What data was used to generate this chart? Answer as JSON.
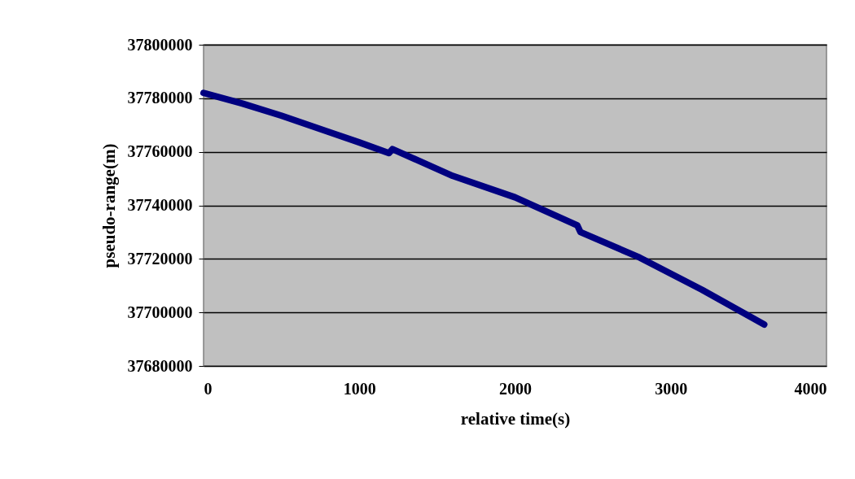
{
  "chart_data": {
    "type": "line",
    "xlabel": "relative time(s)",
    "ylabel": "pseudo-range(m)",
    "x": [
      0,
      250,
      500,
      800,
      1000,
      1190,
      1213,
      1600,
      2000,
      2400,
      2420,
      2800,
      3200,
      3600
    ],
    "series": [
      {
        "color": "#000080",
        "values": [
          37782000,
          37778000,
          37773500,
          37767500,
          37763500,
          37759500,
          37761000,
          37751000,
          37743000,
          37732500,
          37730000,
          37720500,
          37708500,
          37695500
        ]
      }
    ],
    "xlim": [
      0,
      4000
    ],
    "xticks": [
      0,
      1000,
      2000,
      3000,
      4000
    ],
    "ylim": [
      37680000,
      37800000
    ],
    "yticks": [
      37680000,
      37700000,
      37720000,
      37740000,
      37760000,
      37780000,
      37800000
    ],
    "grid": "y",
    "marker": "none",
    "line_style": "solid"
  }
}
